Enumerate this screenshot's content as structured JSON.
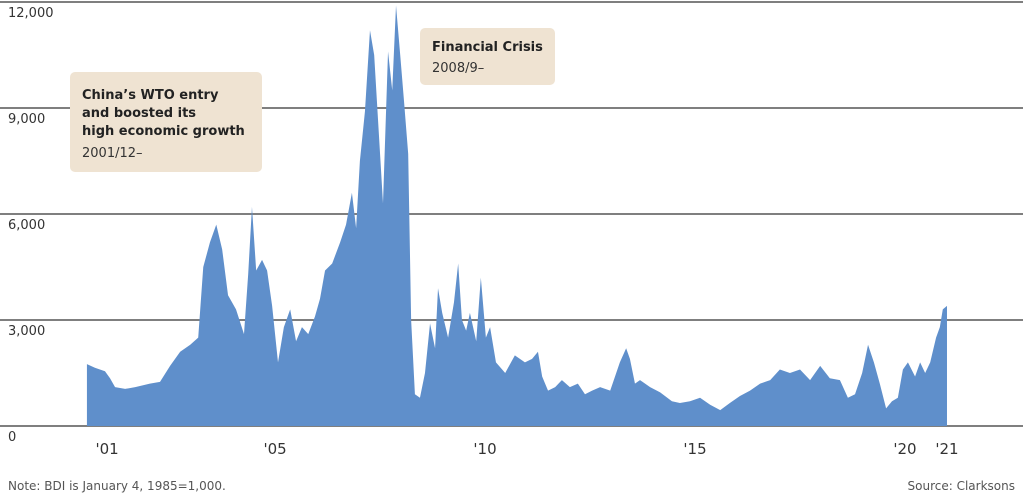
{
  "chart_data": {
    "type": "area",
    "x": [
      2000.52,
      2000.71,
      2000.95,
      2001.07,
      2001.19,
      2001.43,
      2001.67,
      2002.02,
      2002.26,
      2002.5,
      2002.74,
      2002.98,
      2003.17,
      2003.29,
      2003.45,
      2003.6,
      2003.74,
      2003.88,
      2004.07,
      2004.26,
      2004.36,
      2004.45,
      2004.55,
      2004.69,
      2004.81,
      2004.93,
      2005.07,
      2005.21,
      2005.36,
      2005.5,
      2005.64,
      2005.79,
      2005.95,
      2006.07,
      2006.19,
      2006.36,
      2006.55,
      2006.69,
      2006.83,
      2006.93,
      2007.02,
      2007.14,
      2007.26,
      2007.36,
      2007.45,
      2007.57,
      2007.69,
      2007.79,
      2007.88,
      2007.98,
      2008.07,
      2008.17,
      2008.24,
      2008.33,
      2008.45,
      2008.57,
      2008.69,
      2008.81,
      2008.88,
      2008.98,
      2009.12,
      2009.26,
      2009.36,
      2009.45,
      2009.55,
      2009.64,
      2009.79,
      2009.9,
      2010.02,
      2010.12,
      2010.26,
      2010.48,
      2010.71,
      2010.95,
      2011.12,
      2011.26,
      2011.36,
      2011.5,
      2011.67,
      2011.83,
      2012.02,
      2012.21,
      2012.38,
      2012.55,
      2012.74,
      2012.98,
      2013.21,
      2013.36,
      2013.45,
      2013.57,
      2013.69,
      2013.93,
      2014.17,
      2014.45,
      2014.64,
      2014.88,
      2015.12,
      2015.36,
      2015.6,
      2015.83,
      2016.07,
      2016.31,
      2016.55,
      2016.79,
      2017.02,
      2017.26,
      2017.5,
      2017.74,
      2017.98,
      2018.21,
      2018.45,
      2018.64,
      2018.81,
      2018.98,
      2019.12,
      2019.26,
      2019.4,
      2019.55,
      2019.69,
      2019.83,
      2019.95,
      2020.07,
      2020.24,
      2020.36,
      2020.48,
      2020.6,
      2020.74,
      2020.83,
      2020.9,
      2021.0
    ],
    "values": [
      1750,
      1650,
      1550,
      1350,
      1100,
      1050,
      1100,
      1200,
      1250,
      1700,
      2100,
      2300,
      2500,
      4500,
      5200,
      5700,
      5000,
      3700,
      3300,
      2600,
      4300,
      6200,
      4400,
      4700,
      4400,
      3400,
      1800,
      2800,
      3300,
      2400,
      2800,
      2600,
      3100,
      3600,
      4400,
      4600,
      5200,
      5700,
      6600,
      5600,
      7500,
      8900,
      11200,
      10500,
      8700,
      6300,
      10600,
      9500,
      11900,
      10500,
      9200,
      7700,
      3000,
      900,
      800,
      1500,
      2900,
      2200,
      3900,
      3200,
      2500,
      3500,
      4600,
      3000,
      2700,
      3200,
      2400,
      4200,
      2500,
      2800,
      1800,
      1500,
      2000,
      1800,
      1900,
      2100,
      1400,
      1000,
      1100,
      1300,
      1100,
      1200,
      900,
      1000,
      1100,
      1000,
      1800,
      2200,
      1900,
      1200,
      1300,
      1100,
      950,
      700,
      650,
      700,
      800,
      600,
      450,
      650,
      850,
      1000,
      1200,
      1300,
      1600,
      1500,
      1600,
      1300,
      1700,
      1350,
      1300,
      800,
      900,
      1500,
      2300,
      1800,
      1200,
      500,
      700,
      800,
      1600,
      1800,
      1400,
      1800,
      1500,
      1800,
      2500,
      2800,
      3300,
      3400
    ],
    "color": "#5f8fcb",
    "xlim": [
      1998.45,
      2022.81
    ],
    "xticks": [
      {
        "value": 2001,
        "label": "'01"
      },
      {
        "value": 2005,
        "label": "'05"
      },
      {
        "value": 2010,
        "label": "'10"
      },
      {
        "value": 2015,
        "label": "'15"
      },
      {
        "value": 2020,
        "label": "'20"
      },
      {
        "value": 2021,
        "label": "'21"
      }
    ],
    "ylim": [
      0,
      12000
    ],
    "yticks": [
      0,
      {
        "value": 3000,
        "label": "3,000"
      },
      {
        "value": 6000,
        "label": "6,000"
      },
      {
        "value": 9000,
        "label": "9,000"
      },
      {
        "value": 12000,
        "label": "12,000"
      }
    ],
    "grid": true,
    "annotations": [
      {
        "lines": [
          "China’s WTO entry",
          "and boosted its",
          "high economic growth"
        ],
        "date": "2001/12–"
      },
      {
        "lines": [
          "Financial Crisis"
        ],
        "date": "2008/9–"
      }
    ],
    "note": "Note: BDI is January 4, 1985=1,000.",
    "source": "Source: Clarksons"
  }
}
